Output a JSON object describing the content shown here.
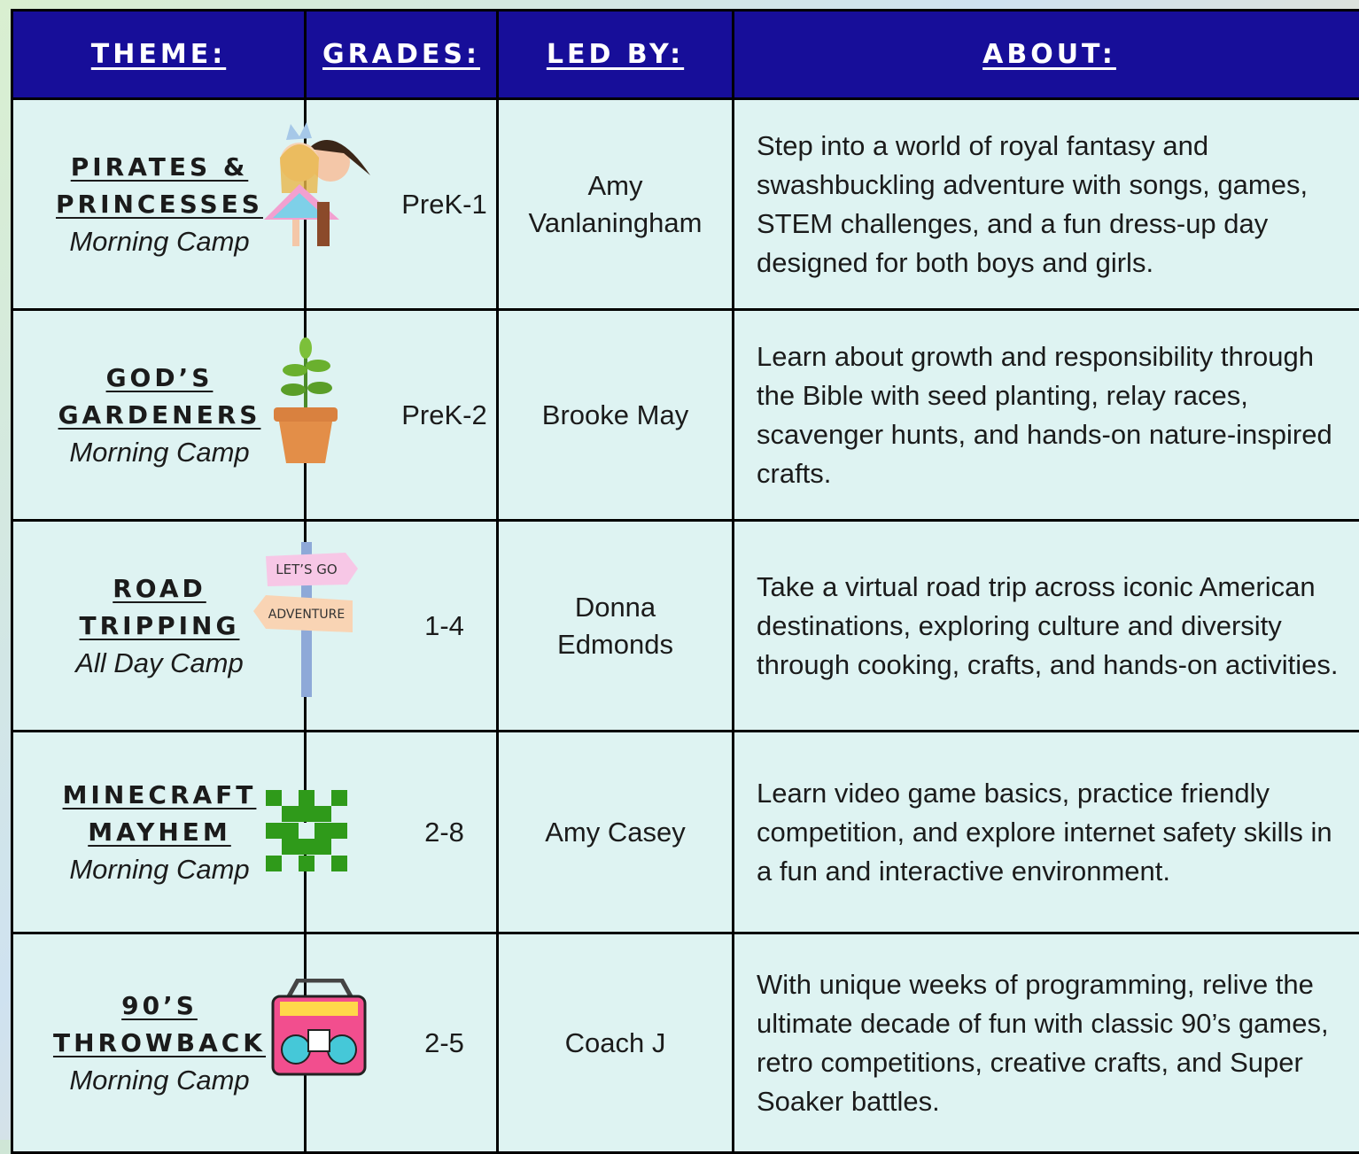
{
  "table": {
    "header": [
      "THEME:",
      "GRADES:",
      "LED BY:",
      "ABOUT:"
    ],
    "rows": [
      {
        "theme": "PIRATES & PRINCESSES",
        "camp": "Morning Camp",
        "grades": "PreK-1",
        "led_by": "Amy Vanlaningham",
        "about": "Step into a world of royal fantasy and swashbuckling adventure with songs, games, STEM challenges, and a fun dress-up day designed for both boys and girls."
      },
      {
        "theme": "GOD’S GARDENERS",
        "camp": "Morning Camp",
        "grades": "PreK-2",
        "led_by": "Brooke May",
        "about": "Learn about growth and responsibility through the Bible with seed planting, relay races, scavenger hunts, and hands-on nature-inspired crafts."
      },
      {
        "theme": "ROAD TRIPPING",
        "camp": "All Day Camp",
        "grades": "1-4",
        "led_by": "Donna Edmonds",
        "about": "Take a virtual road trip across iconic American destinations, exploring culture and diversity through cooking, crafts, and hands-on activities."
      },
      {
        "theme": "MINECRAFT MAYHEM",
        "camp": "Morning Camp",
        "grades": "2-8",
        "led_by": "Amy Casey",
        "about": "Learn video game basics, practice friendly competition, and explore internet safety skills in a fun and interactive environment."
      },
      {
        "theme": "90’S THROWBACK",
        "camp": "Morning Camp",
        "grades": "2-5",
        "led_by": "Coach J",
        "about": "With unique weeks of programming, relive the ultimate decade of fun with classic 90’s games, retro competitions, creative crafts, and Super Soaker battles."
      }
    ],
    "signpost": [
      "LET’S GO",
      "ADVENTURE"
    ]
  }
}
